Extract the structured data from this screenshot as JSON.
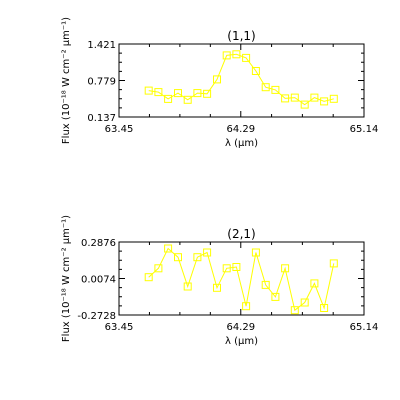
{
  "series_color": "#ffff00",
  "chart_data": [
    {
      "type": "line",
      "title": "(1,1)",
      "xlabel": "λ (μm)",
      "ylabel": "Flux (10⁻¹⁸ W cm⁻² μm⁻¹)",
      "xlim": [
        63.45,
        65.14
      ],
      "ylim": [
        0.137,
        1.421
      ],
      "xticks": [
        "63.45",
        "64.29",
        "65.14"
      ],
      "yticks": [
        "0.137",
        "0.779",
        "1.421"
      ],
      "grid": false,
      "x": [
        63.655,
        63.722,
        63.789,
        63.857,
        63.924,
        63.991,
        64.058,
        64.126,
        64.193,
        64.26,
        64.327,
        64.394,
        64.462,
        64.529,
        64.596,
        64.663,
        64.731,
        64.798,
        64.865,
        64.932
      ],
      "values": [
        0.601,
        0.575,
        0.455,
        0.557,
        0.44,
        0.557,
        0.545,
        0.799,
        1.22,
        1.24,
        1.176,
        0.946,
        0.661,
        0.614,
        0.465,
        0.479,
        0.355,
        0.479,
        0.411,
        0.458
      ]
    },
    {
      "type": "line",
      "title": "(2,1)",
      "xlabel": "λ (μm)",
      "ylabel": "Flux (10⁻¹⁸ W cm⁻² μm⁻¹)",
      "xlim": [
        63.45,
        65.14
      ],
      "ylim": [
        -0.2728,
        0.2876
      ],
      "xticks": [
        "63.45",
        "64.29",
        "65.14"
      ],
      "yticks": [
        "-0.2728",
        "0.0074",
        "0.2876"
      ],
      "grid": false,
      "x": [
        63.655,
        63.722,
        63.789,
        63.857,
        63.924,
        63.991,
        64.058,
        64.126,
        64.193,
        64.26,
        64.327,
        64.394,
        64.462,
        64.529,
        64.596,
        64.663,
        64.731,
        64.798,
        64.865,
        64.932
      ],
      "values": [
        0.017,
        0.086,
        0.238,
        0.171,
        -0.054,
        0.171,
        0.207,
        -0.064,
        0.086,
        0.096,
        -0.205,
        0.207,
        -0.042,
        -0.134,
        0.086,
        -0.236,
        -0.177,
        -0.03,
        -0.219,
        0.123
      ]
    }
  ]
}
